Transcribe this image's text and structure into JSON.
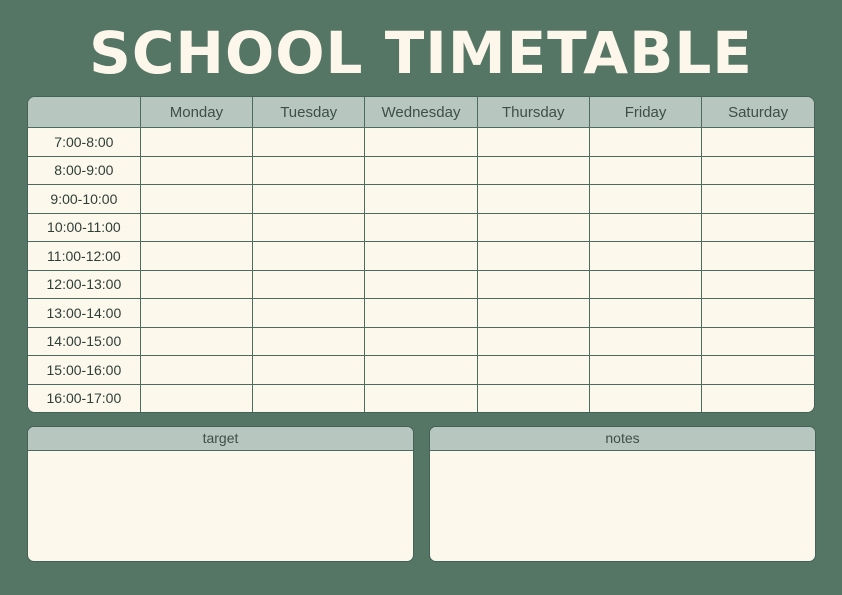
{
  "title": "SCHOOL TIMETABLE",
  "days": [
    "Monday",
    "Tuesday",
    "Wednesday",
    "Thursday",
    "Friday",
    "Saturday"
  ],
  "times": [
    "7:00-8:00",
    "8:00-9:00",
    "9:00-10:00",
    "10:00-11:00",
    "11:00-12:00",
    "12:00-13:00",
    "13:00-14:00",
    "14:00-15:00",
    "15:00-16:00",
    "16:00-17:00"
  ],
  "panels": {
    "target": "target",
    "notes": "notes"
  },
  "colors": {
    "background": "#557565",
    "header": "#b8c6c0",
    "cell": "#fcf8ec",
    "border": "#4d6b60"
  }
}
